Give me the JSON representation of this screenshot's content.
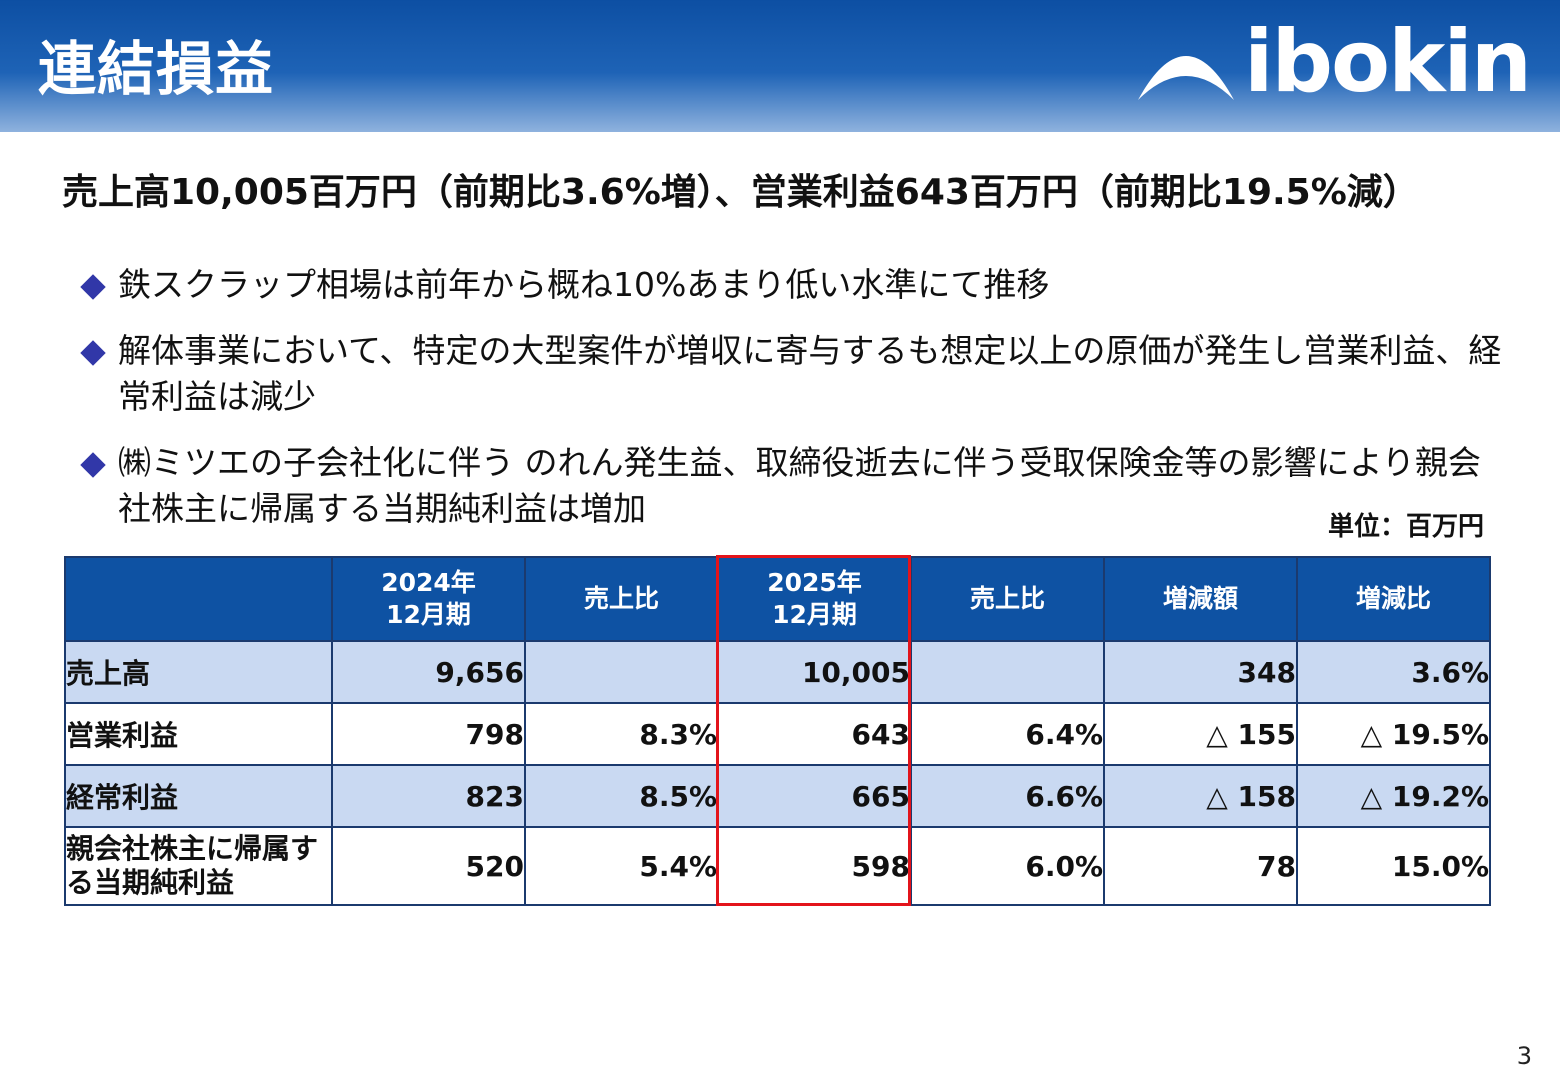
{
  "header": {
    "title": "連結損益",
    "logo_text": "ibokin"
  },
  "headline": "売上高10,005百万円（前期比3.6%増）、営業利益643百万円（前期比19.5%減）",
  "bullets": [
    "鉄スクラップ相場は前年から概ね10%あまり低い水準にて推移",
    "解体事業において、特定の大型案件が増収に寄与するも想定以上の原価が発生し営業利益、経常利益は減少",
    "㈱ミツエの子会社化に伴う のれん発生益、取締役逝去に伴う受取保険金等の影響により親会社株主に帰属する当期純利益は増加"
  ],
  "unit": "単位：百万円",
  "table": {
    "headers": [
      "",
      "2024年\n12月期",
      "売上比",
      "2025年\n12月期",
      "売上比",
      "増減額",
      "増減比"
    ],
    "rows": [
      [
        "売上高",
        "9,656",
        "",
        "10,005",
        "",
        "348",
        "3.6%"
      ],
      [
        "営業利益",
        "798",
        "8.3%",
        "643",
        "6.4%",
        "△ 155",
        "△ 19.5%"
      ],
      [
        "経常利益",
        "823",
        "8.5%",
        "665",
        "6.6%",
        "△ 158",
        "△ 19.2%"
      ],
      [
        "親会社株主に帰属する当期純利益",
        "520",
        "5.4%",
        "598",
        "6.0%",
        "78",
        "15.0%"
      ]
    ]
  },
  "page_number": "3",
  "colors": {
    "header_blue": "#0e52a3",
    "row_shade": "#c9d9f2",
    "highlight": "#e3141b",
    "bullet": "#3137a8"
  }
}
